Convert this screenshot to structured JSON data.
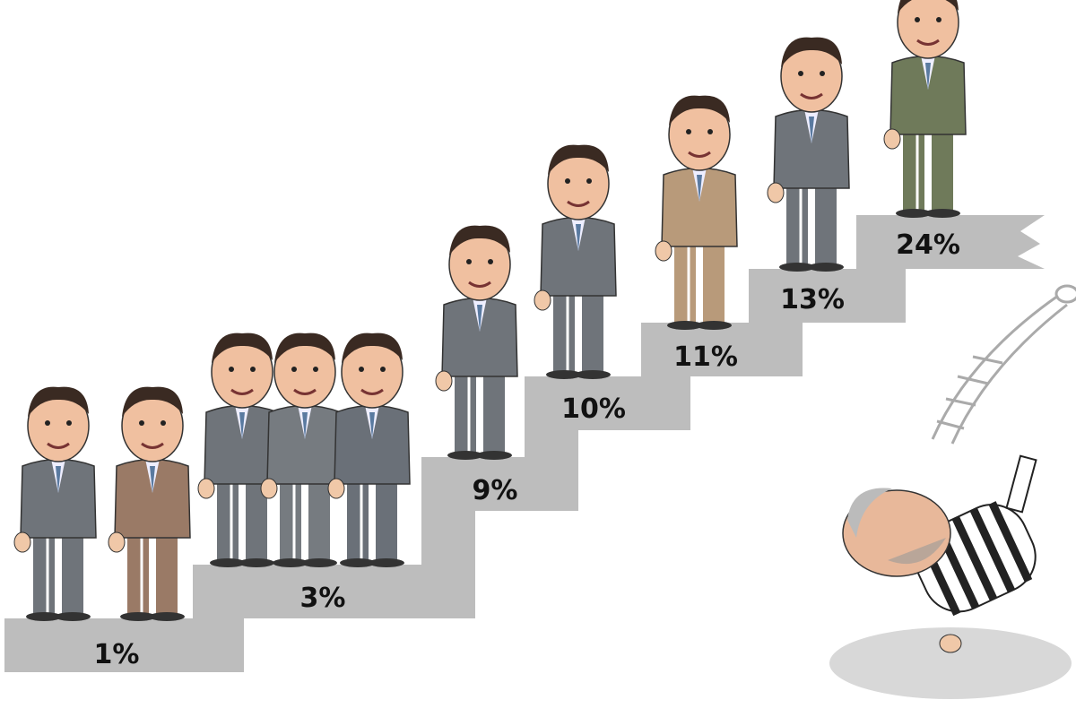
{
  "cartoon": {
    "steps": [
      {
        "label": "1%"
      },
      {
        "label": "3%"
      },
      {
        "label": "9%"
      },
      {
        "label": "10%"
      },
      {
        "label": "11%"
      },
      {
        "label": "13%"
      },
      {
        "label": "24%"
      }
    ],
    "colors": {
      "stairs": "#bdbdbd",
      "suit_gray": "#6f747a",
      "suit_brown": "#9a7a66",
      "suit_green": "#6f7a5a",
      "dress_beige": "#b89a7a",
      "prisoner_stripes": "#222222"
    }
  }
}
